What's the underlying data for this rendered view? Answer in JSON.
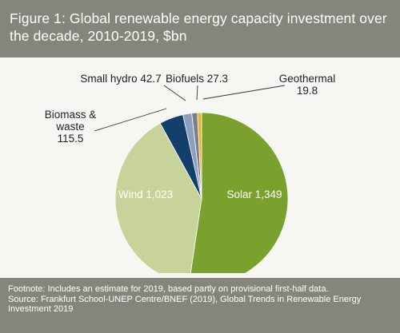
{
  "header": {
    "title": "Figure 1: Global renewable energy capacity investment over the decade, 2010-2019, $bn"
  },
  "chart_data": {
    "type": "pie",
    "title": "Figure 1: Global renewable energy capacity investment over the decade, 2010-2019, $bn",
    "unit": "$bn",
    "slices": [
      {
        "label": "Solar",
        "value": 1349,
        "display": "Solar 1,349",
        "color": "#7aa12e"
      },
      {
        "label": "Wind",
        "value": 1023,
        "display": "Wind 1,023",
        "color": "#c8d39a"
      },
      {
        "label": "Biomass & waste",
        "value": 115.5,
        "display": "Biomass &\nwaste\n115.5",
        "color": "#123f6b"
      },
      {
        "label": "Small hydro",
        "value": 42.7,
        "display": "Small hydro 42.7",
        "color": "#8d9fbe"
      },
      {
        "label": "Biofuels",
        "value": 27.3,
        "display": "Biofuels 27.3",
        "color": "#7b7f86"
      },
      {
        "label": "Geothermal",
        "value": 19.8,
        "display": "Geothermal\n19.8",
        "color": "#e6b52c"
      }
    ],
    "legend": "none"
  },
  "footer": {
    "footnote": "Footnote: Includes an estimate for 2019, based partly on provisional first-half data.",
    "source": "Source: Frankfurt School-UNEP Centre/BNEF (2019), Global Trends in Renewable Energy Investment 2019"
  }
}
